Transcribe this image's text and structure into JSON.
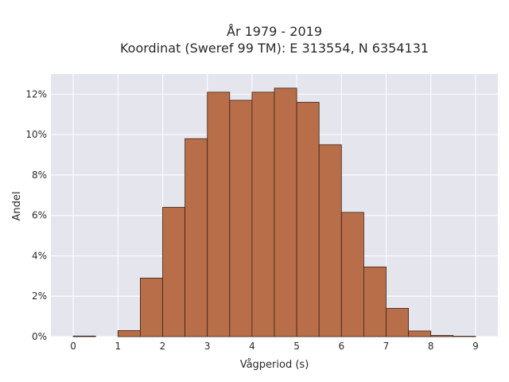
{
  "chart_data": {
    "type": "bar",
    "title_line1": "År 1979 - 2019",
    "title_line2": "Koordinat (Sweref 99 TM): E 313554, N 6354131",
    "xlabel": "Vågperiod (s)",
    "ylabel": "Andel",
    "xlim": [
      -0.5,
      9.5
    ],
    "ylim": [
      0,
      13
    ],
    "x_ticks": [
      0,
      1,
      2,
      3,
      4,
      5,
      6,
      7,
      8,
      9
    ],
    "y_ticks": [
      0,
      2,
      4,
      6,
      8,
      10,
      12
    ],
    "y_tick_labels": [
      "0%",
      "2%",
      "4%",
      "6%",
      "8%",
      "10%",
      "12%"
    ],
    "bin_width": 0.5,
    "bins": [
      {
        "x0": 0.0,
        "value": 0.03
      },
      {
        "x0": 0.5,
        "value": 0.0
      },
      {
        "x0": 1.0,
        "value": 0.3
      },
      {
        "x0": 1.5,
        "value": 2.9
      },
      {
        "x0": 2.0,
        "value": 6.4
      },
      {
        "x0": 2.5,
        "value": 9.8
      },
      {
        "x0": 3.0,
        "value": 12.1
      },
      {
        "x0": 3.5,
        "value": 11.7
      },
      {
        "x0": 4.0,
        "value": 12.1
      },
      {
        "x0": 4.5,
        "value": 12.3
      },
      {
        "x0": 5.0,
        "value": 11.6
      },
      {
        "x0": 5.5,
        "value": 9.5
      },
      {
        "x0": 6.0,
        "value": 6.15
      },
      {
        "x0": 6.5,
        "value": 3.45
      },
      {
        "x0": 7.0,
        "value": 1.4
      },
      {
        "x0": 7.5,
        "value": 0.28
      },
      {
        "x0": 8.0,
        "value": 0.06
      },
      {
        "x0": 8.5,
        "value": 0.02
      }
    ],
    "grid": true,
    "colors": {
      "bar_fill": "#b86e48",
      "bar_stroke": "#3a2418",
      "plot_bg": "#e5e5ee",
      "grid": "#ffffff"
    }
  }
}
